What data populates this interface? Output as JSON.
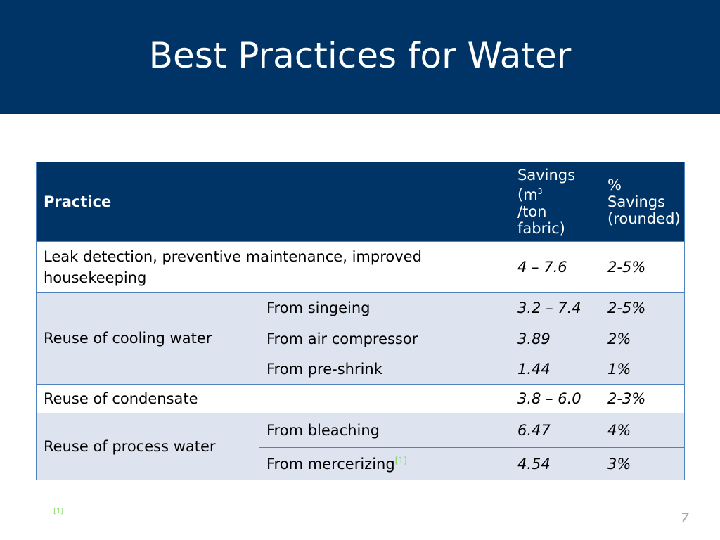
{
  "slide": {
    "title": "Best Practices for Water",
    "page_number": "7",
    "footnote_mark": "[1]"
  },
  "table": {
    "headers": {
      "practice": "Practice",
      "savings_pre": "Savings (m",
      "savings_sup": "3",
      "savings_post": "/ton fabric)",
      "pct_line1": "% Savings",
      "pct_line2": "(rounded)"
    },
    "rows": [
      {
        "practice": "Leak detection, preventive maintenance, improved housekeeping",
        "savings": "4 – 7.6",
        "pct": "2-5%"
      },
      {
        "group": "Reuse of cooling water",
        "sub": "From singeing",
        "savings": "3.2 – 7.4",
        "pct": "2-5%"
      },
      {
        "sub": "From air compressor",
        "savings": "3.89",
        "pct": "2%"
      },
      {
        "sub": "From pre-shrink",
        "savings": "1.44",
        "pct": "1%"
      },
      {
        "practice": "Reuse of condensate",
        "savings": "3.8 – 6.0",
        "pct": "2-3%"
      },
      {
        "group": "Reuse of  process water",
        "sub": "From bleaching",
        "savings": "6.47",
        "pct": "4%"
      },
      {
        "sub": "From mercerizing",
        "sub_ref": "[1]",
        "savings": "4.54",
        "pct": "3%"
      }
    ]
  }
}
